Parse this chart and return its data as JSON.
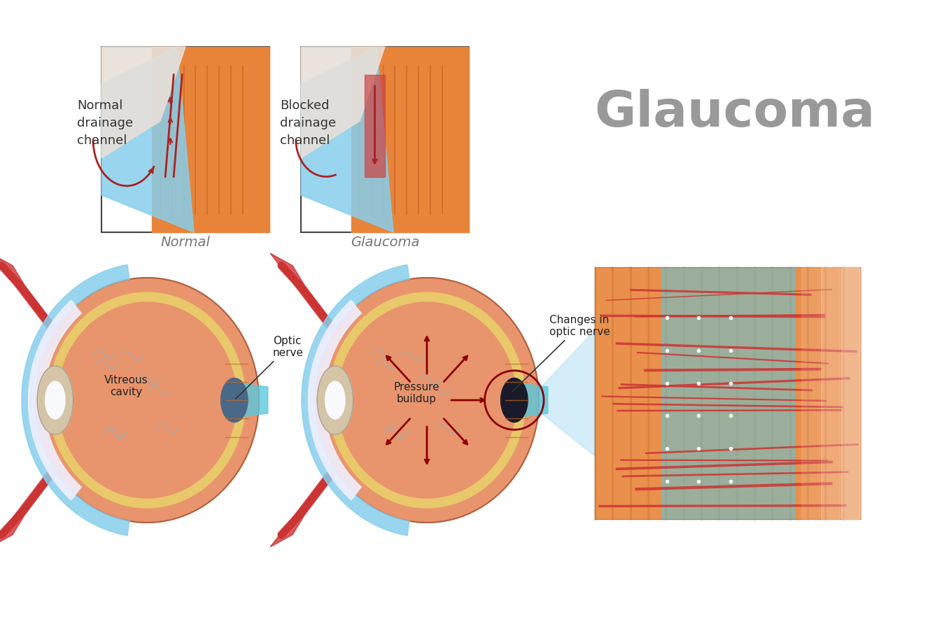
{
  "title": "Glaucoma",
  "title_color": "#999999",
  "title_fontsize": 52,
  "title_fontweight": "bold",
  "background_color": "#ffffff",
  "label_normal": "Normal",
  "label_glaucoma": "Glaucoma",
  "label_normal_drainage": "Normal\ndrainage\nchannel",
  "label_blocked_drainage": "Blocked\ndrainage\nchannel",
  "label_vitreous": "Vitreous\ncavity",
  "label_optic_nerve": "Optic\nnerve",
  "label_pressure": "Pressure\nbuildup",
  "label_changes": "Changes in\noptic nerve",
  "colors": {
    "eye_outer": "#d4855a",
    "eye_sclera": "#e8956d",
    "cornea": "#e8e8f0",
    "iris": "#c8a882",
    "pupil": "#2a2a2a",
    "aqueous": "#b8d8e8",
    "lens": "#f0f0f8",
    "vitreous": "#e8956d",
    "optic_nerve_area": "#4a6888",
    "muscle_red": "#cc3333",
    "muscle_dark": "#aa2222",
    "arrow_color": "#8b0000",
    "annotation_color": "#222222",
    "box_border": "#555555",
    "sky_blue": "#87ceeb",
    "light_blue": "#add8e6",
    "cyan_blue": "#5bc8dc",
    "orange_tissue": "#e8843a",
    "dark_orange": "#c06820",
    "yellow_rim": "#e8c86a",
    "nerve_dark": "#2a4a6a",
    "zoom_blue": "#87ceeb"
  }
}
